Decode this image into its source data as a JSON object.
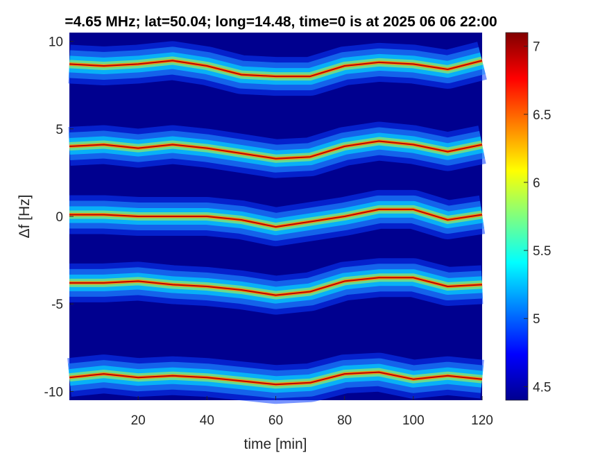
{
  "chart_data": {
    "type": "heatmap",
    "title": "=4.65 MHz;  lat=50.04; long=14.48, time=0 is at 2025 06 06 22:00",
    "xlabel": "time [min]",
    "ylabel": "Δf [Hz]",
    "xlim": [
      0,
      120
    ],
    "ylim": [
      -10.5,
      10.5
    ],
    "xticks": [
      "20",
      "40",
      "60",
      "80",
      "100",
      "120"
    ],
    "yticks": [
      "10",
      "5",
      "0",
      "-5",
      "-10"
    ],
    "colorbar": {
      "range": [
        4.4,
        7.1
      ],
      "ticks": [
        "7",
        "6.5",
        "6",
        "5.5",
        "5",
        "4.5"
      ],
      "colormap": "jet"
    },
    "background_color": "#00008f",
    "bands": [
      {
        "center_hz": 8.7,
        "time": [
          0,
          10,
          20,
          30,
          40,
          50,
          60,
          70,
          80,
          90,
          100,
          110,
          120
        ],
        "freq_hz": [
          8.7,
          8.6,
          8.7,
          8.9,
          8.6,
          8.1,
          8.0,
          8.0,
          8.6,
          8.8,
          8.7,
          8.4,
          8.9
        ]
      },
      {
        "center_hz": 4.0,
        "time": [
          0,
          10,
          20,
          30,
          40,
          50,
          60,
          70,
          80,
          90,
          100,
          110,
          120
        ],
        "freq_hz": [
          4.0,
          4.1,
          3.9,
          4.1,
          3.9,
          3.6,
          3.3,
          3.4,
          4.0,
          4.3,
          4.1,
          3.7,
          4.1
        ]
      },
      {
        "center_hz": 0.1,
        "time": [
          0,
          10,
          20,
          30,
          40,
          50,
          60,
          70,
          80,
          90,
          100,
          110,
          120
        ],
        "freq_hz": [
          0.1,
          0.1,
          0.0,
          0.0,
          0.0,
          -0.2,
          -0.6,
          -0.3,
          0.0,
          0.4,
          0.4,
          -0.2,
          0.1
        ]
      },
      {
        "center_hz": -3.8,
        "time": [
          0,
          10,
          20,
          30,
          40,
          50,
          60,
          70,
          80,
          90,
          100,
          110,
          120
        ],
        "freq_hz": [
          -3.8,
          -3.8,
          -3.7,
          -3.9,
          -4.0,
          -4.2,
          -4.5,
          -4.3,
          -3.7,
          -3.5,
          -3.5,
          -4.0,
          -3.9
        ]
      },
      {
        "center_hz": -9.2,
        "time": [
          0,
          10,
          20,
          30,
          40,
          50,
          60,
          70,
          80,
          90,
          100,
          110,
          120
        ],
        "freq_hz": [
          -9.2,
          -9.0,
          -9.2,
          -9.1,
          -9.2,
          -9.4,
          -9.6,
          -9.5,
          -9.0,
          -8.9,
          -9.3,
          -9.1,
          -9.3
        ]
      }
    ]
  }
}
